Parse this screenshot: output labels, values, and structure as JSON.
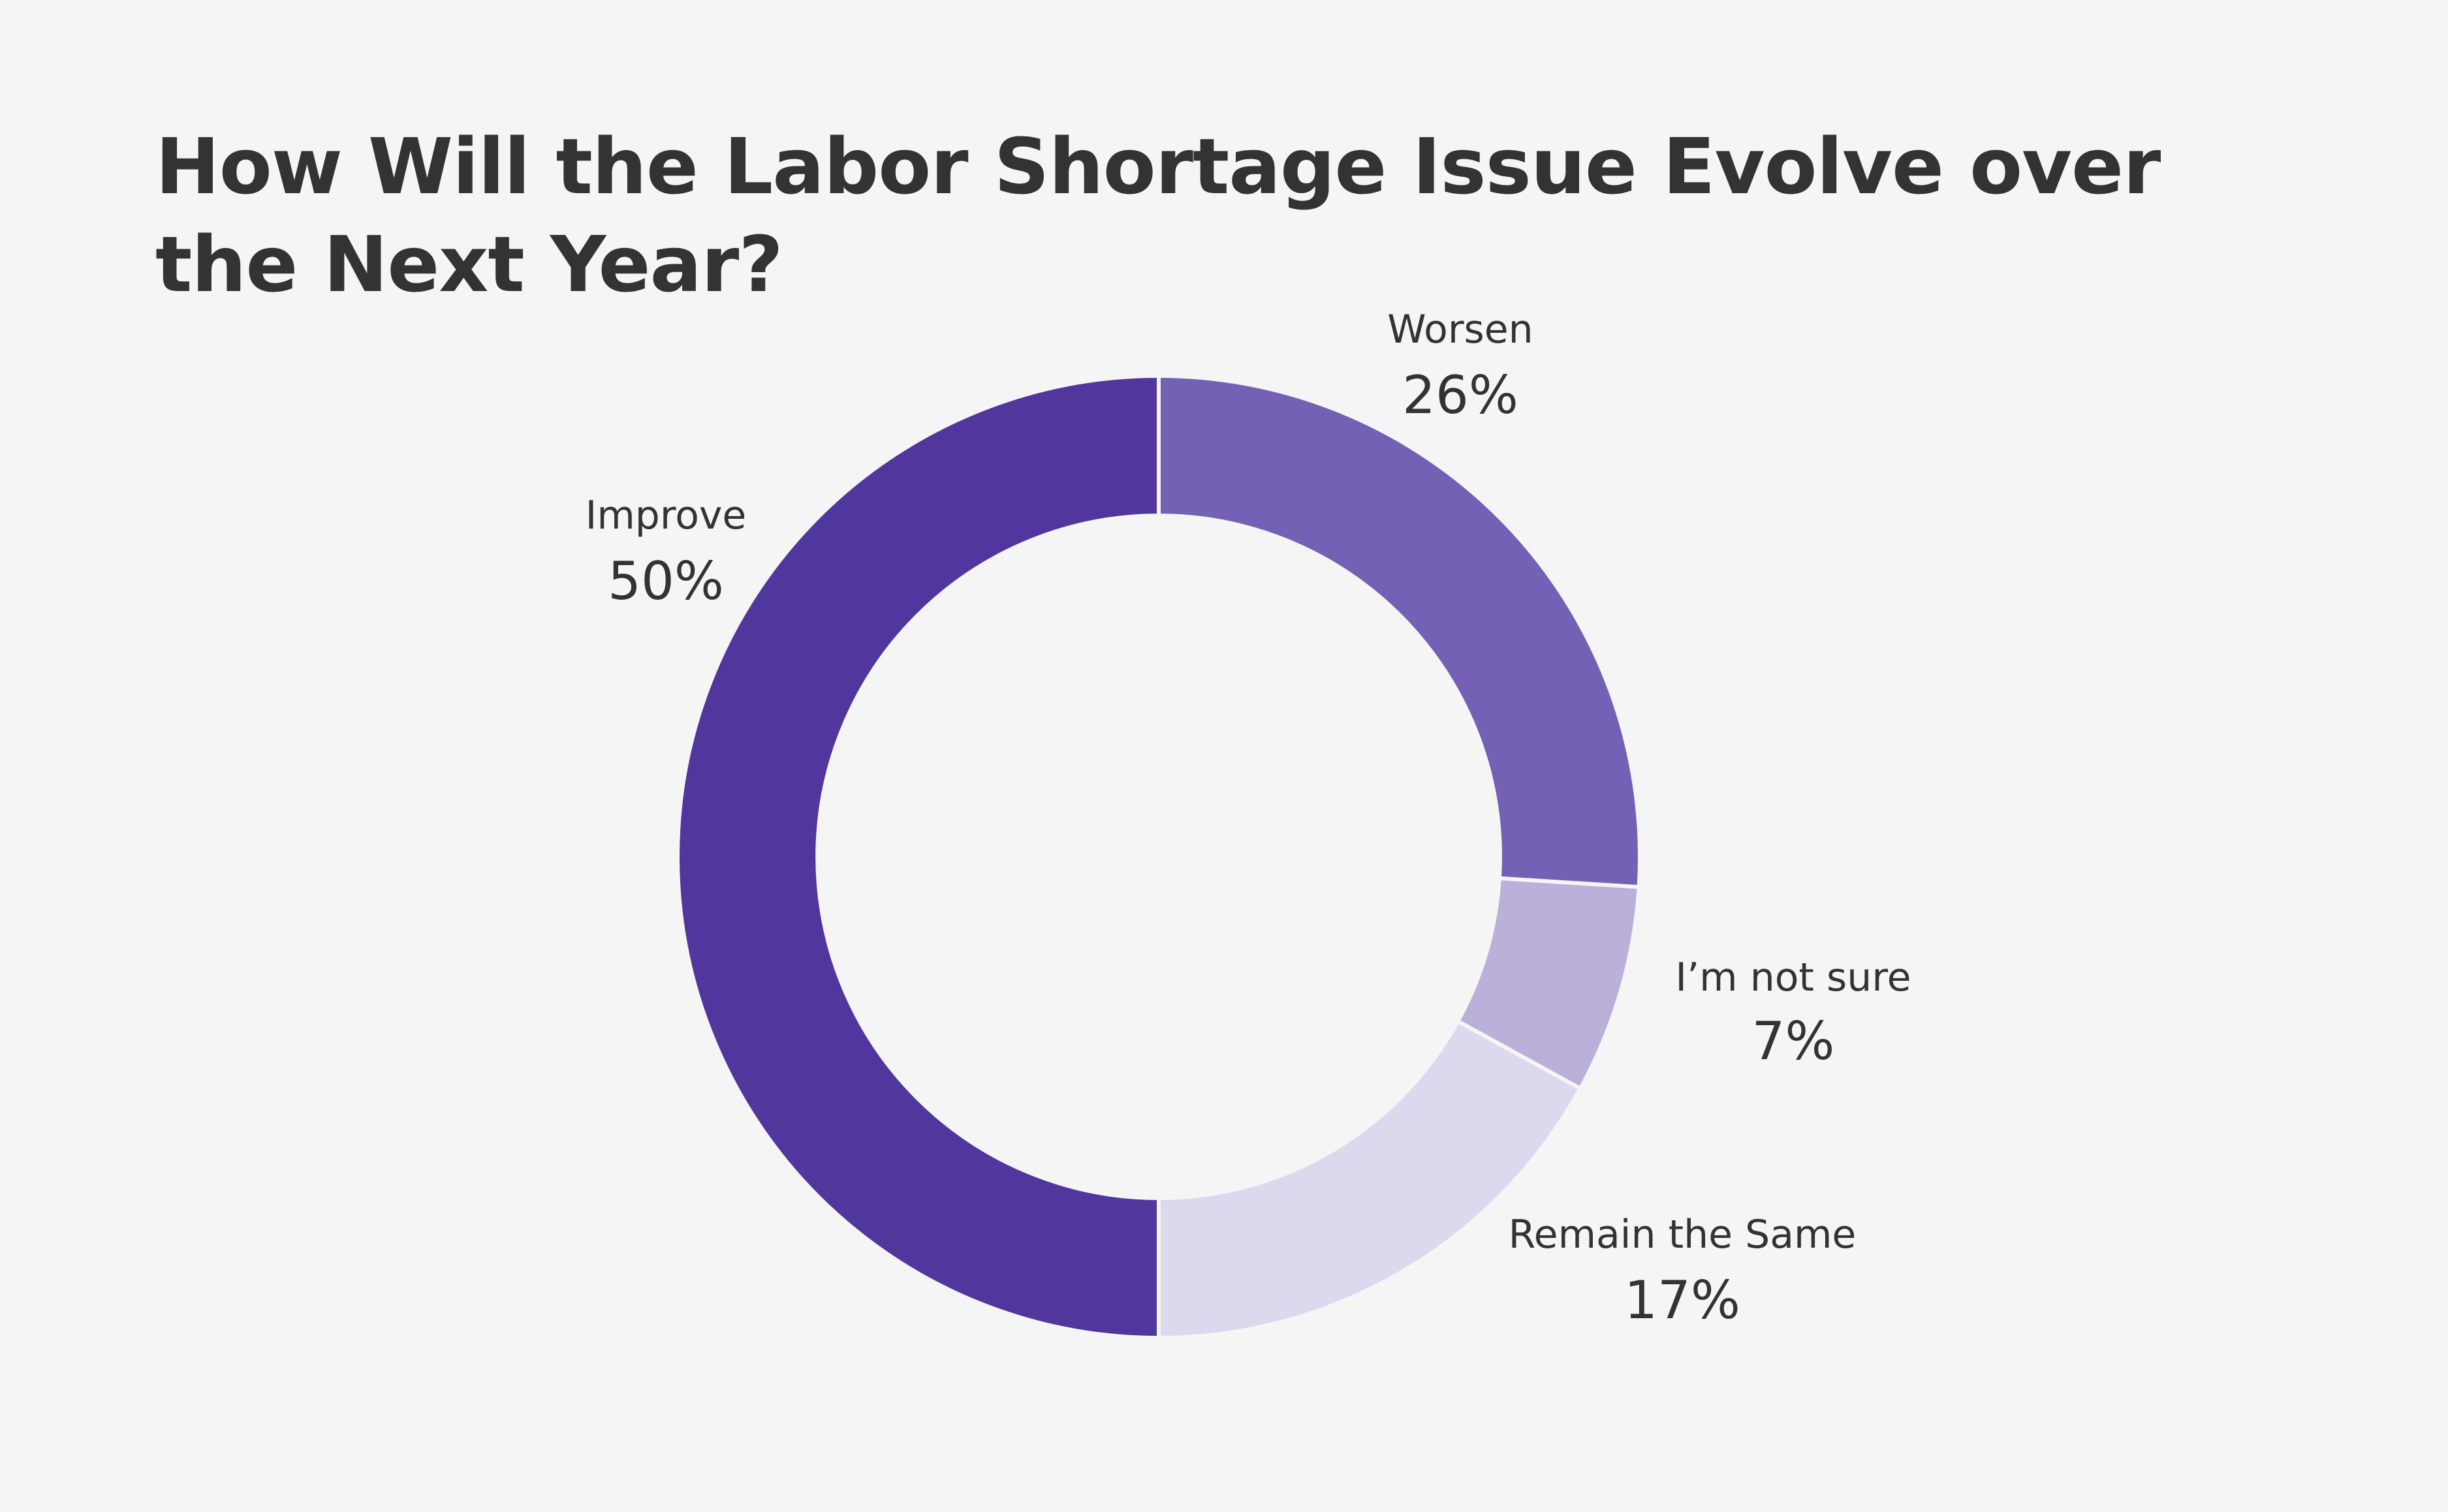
{
  "chart_data": {
    "type": "pie",
    "title": "How Will the Labor Shortage Issue Evolve over the Next Year?",
    "donut": true,
    "slices": [
      {
        "label": "Worsen",
        "value": 26,
        "value_label": "26%",
        "color": "#7460b4"
      },
      {
        "label": "I’m not sure",
        "value": 7,
        "value_label": "7%",
        "color": "#bab0d9"
      },
      {
        "label": "Remain the Same",
        "value": 17,
        "value_label": "17%",
        "color": "#ddd8ee"
      },
      {
        "label": "Improve",
        "value": 50,
        "value_label": "50%",
        "color": "#50369d"
      }
    ],
    "start_angle": "top",
    "direction": "clockwise",
    "legend": "none",
    "background": "#f5f5f5"
  }
}
